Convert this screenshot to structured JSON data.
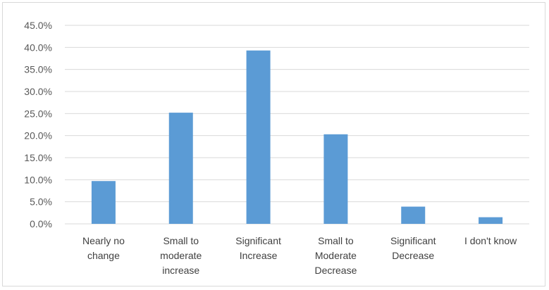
{
  "chart_data": {
    "type": "bar",
    "categories": [
      [
        "Nearly no",
        "change"
      ],
      [
        "Small to",
        "moderate",
        "increase"
      ],
      [
        "Significant",
        "Increase"
      ],
      [
        "Small to",
        "Moderate",
        "Decrease"
      ],
      [
        "Significant",
        "Decrease"
      ],
      [
        "I don't know"
      ]
    ],
    "series": [
      {
        "values": [
          9.7,
          25.2,
          39.3,
          20.3,
          3.9,
          1.5
        ]
      }
    ],
    "ylim": [
      0,
      45
    ],
    "yticks": [
      "0.0%",
      "5.0%",
      "10.0%",
      "15.0%",
      "20.0%",
      "25.0%",
      "30.0%",
      "35.0%",
      "40.0%",
      "45.0%"
    ],
    "grid": true,
    "legend": "none",
    "title": "",
    "xlabel": "",
    "ylabel": "",
    "bar_color": "#5b9bd5",
    "grid_color": "#d9d9d9"
  }
}
